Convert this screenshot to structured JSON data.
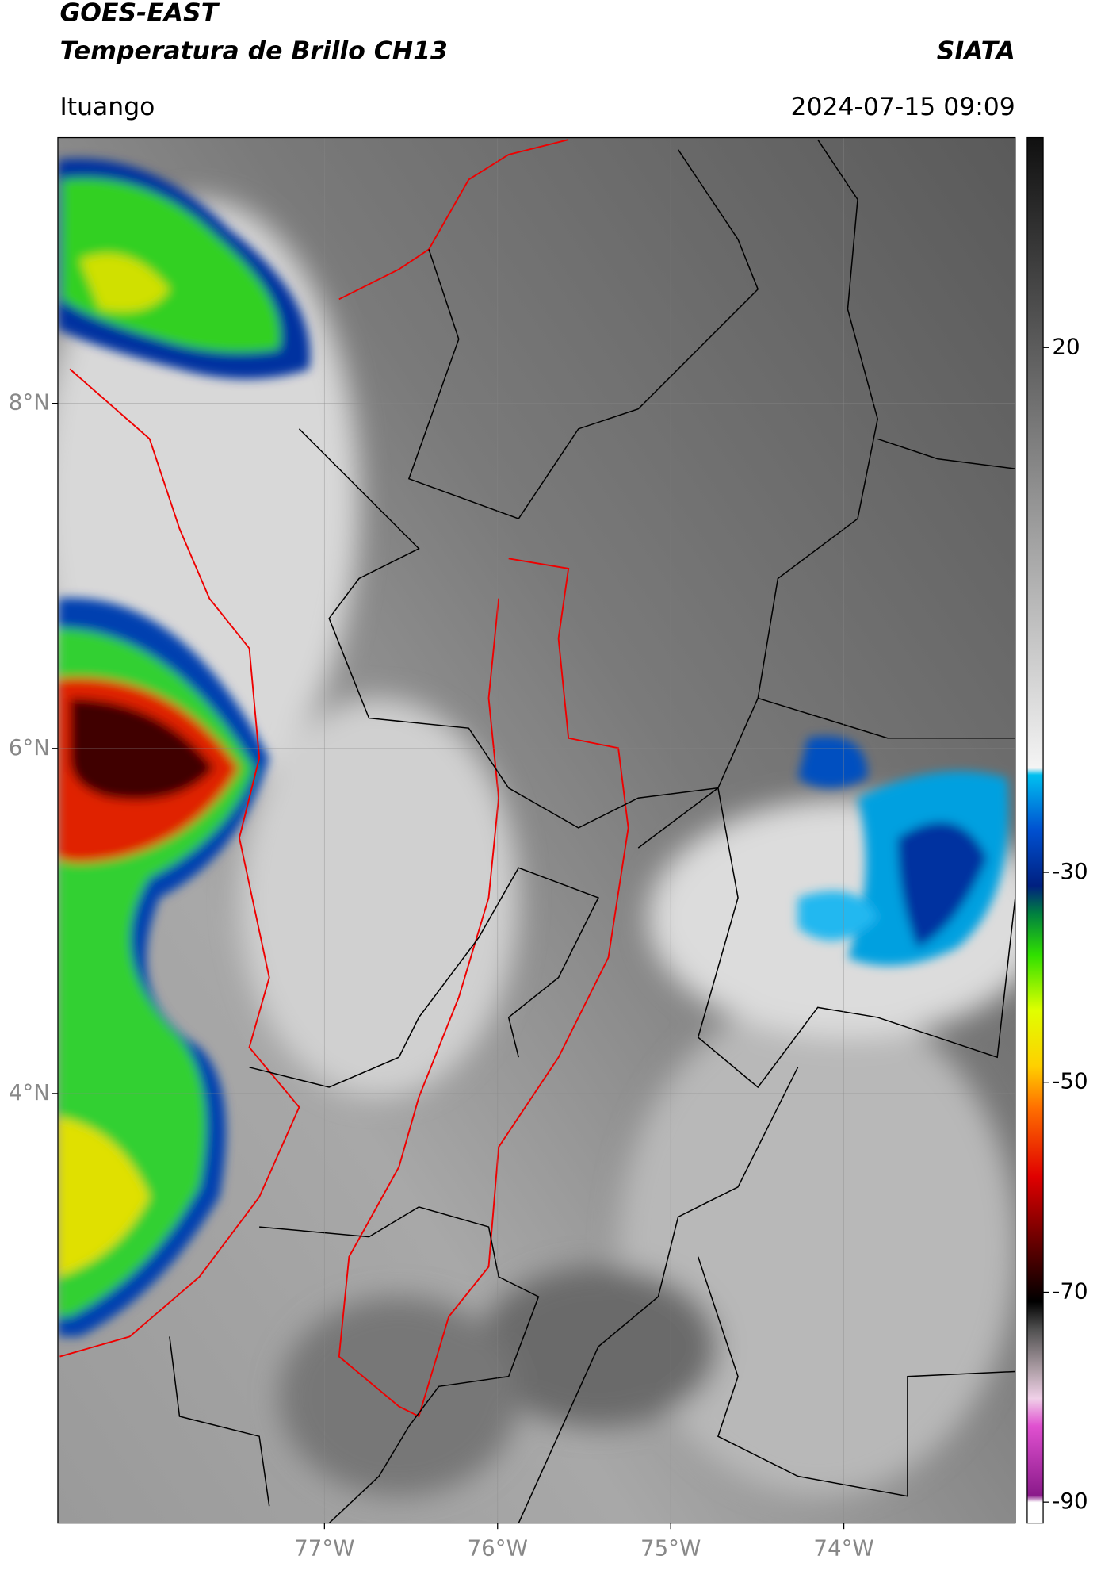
{
  "header": {
    "title": "GOES-EAST",
    "subtitle": "Temperatura de Brillo CH13",
    "source": "SIATA",
    "region": "Ituango",
    "datetime": "2024-07-15 09:09"
  },
  "map": {
    "xlim": [
      -78.54,
      -73.01
    ],
    "ylim": [
      1.51,
      9.54
    ],
    "xticks": [
      {
        "value": -77,
        "label": "77°W"
      },
      {
        "value": -76,
        "label": "76°W"
      },
      {
        "value": -75,
        "label": "75°W"
      },
      {
        "value": -74,
        "label": "74°W"
      }
    ],
    "yticks": [
      {
        "value": 8,
        "label": "8°N"
      },
      {
        "value": 6,
        "label": "6°N"
      },
      {
        "value": 4,
        "label": "4°N"
      }
    ]
  },
  "colorbar": {
    "lim": [
      -92,
      40
    ],
    "ticks": [
      20,
      -30,
      -50,
      -70,
      -90
    ]
  }
}
